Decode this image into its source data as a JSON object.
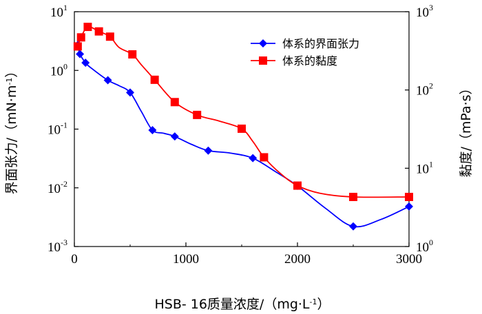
{
  "chart_data": {
    "type": "line",
    "x_axis": {
      "label_prefix": "HSB- 16质量浓度/（mg·L",
      "label_sup": "-1",
      "label_suffix": "）",
      "range": [
        0,
        3000
      ],
      "ticks": [
        "0",
        "1000",
        "2000",
        "3000"
      ],
      "tick_values": [
        0,
        1000,
        2000,
        3000
      ]
    },
    "y_left": {
      "label_prefix": "界面张力/（mN·m",
      "label_sup": "-1",
      "label_suffix": "）",
      "scale": "log",
      "range": [
        0.001,
        10
      ],
      "ticks": [
        {
          "value": 10,
          "base": "10",
          "exp": "1"
        },
        {
          "value": 1,
          "base": "10",
          "exp": "0"
        },
        {
          "value": 0.1,
          "base": "10",
          "exp": "-1"
        },
        {
          "value": 0.01,
          "base": "10",
          "exp": "-2"
        },
        {
          "value": 0.001,
          "base": "10",
          "exp": "-3"
        }
      ]
    },
    "y_right": {
      "label": "黏度/（mPa·s）",
      "scale": "log",
      "range": [
        1,
        1000
      ],
      "ticks": [
        {
          "value": 1000,
          "base": "10",
          "exp": "3"
        },
        {
          "value": 100,
          "base": "10",
          "exp": "2"
        },
        {
          "value": 10,
          "base": "10",
          "exp": "1"
        },
        {
          "value": 1,
          "base": "10",
          "exp": "0"
        }
      ]
    },
    "series": [
      {
        "name": "体系的界面张力",
        "axis": "left",
        "color": "#0000ff",
        "marker": "diamond",
        "points": [
          {
            "x": 30,
            "y": 2.7
          },
          {
            "x": 50,
            "y": 1.9
          },
          {
            "x": 100,
            "y": 1.35
          },
          {
            "x": 150,
            "y": 1.1,
            "hidden": true
          },
          {
            "x": 300,
            "y": 0.68
          },
          {
            "x": 400,
            "y": 0.55,
            "hidden": true
          },
          {
            "x": 500,
            "y": 0.42
          },
          {
            "x": 600,
            "y": 0.2,
            "hidden": true
          },
          {
            "x": 700,
            "y": 0.096
          },
          {
            "x": 800,
            "y": 0.085,
            "hidden": true
          },
          {
            "x": 900,
            "y": 0.075
          },
          {
            "x": 1050,
            "y": 0.055,
            "hidden": true
          },
          {
            "x": 1200,
            "y": 0.043
          },
          {
            "x": 1400,
            "y": 0.039,
            "hidden": true
          },
          {
            "x": 1600,
            "y": 0.032
          },
          {
            "x": 1800,
            "y": 0.019,
            "hidden": true
          },
          {
            "x": 2000,
            "y": 0.0108
          },
          {
            "x": 2250,
            "y": 0.0045,
            "hidden": true
          },
          {
            "x": 2500,
            "y": 0.0022
          },
          {
            "x": 2750,
            "y": 0.0029,
            "hidden": true
          },
          {
            "x": 3000,
            "y": 0.0048
          }
        ]
      },
      {
        "name": "体系的黏度",
        "axis": "right",
        "color": "#ff0000",
        "marker": "square",
        "points": [
          {
            "x": 30,
            "y": 360
          },
          {
            "x": 60,
            "y": 470
          },
          {
            "x": 120,
            "y": 640
          },
          {
            "x": 220,
            "y": 560
          },
          {
            "x": 320,
            "y": 480
          },
          {
            "x": 400,
            "y": 350,
            "hidden": true
          },
          {
            "x": 520,
            "y": 285
          },
          {
            "x": 600,
            "y": 210,
            "hidden": true
          },
          {
            "x": 720,
            "y": 135
          },
          {
            "x": 900,
            "y": 70
          },
          {
            "x": 1100,
            "y": 48
          },
          {
            "x": 1300,
            "y": 40,
            "hidden": true
          },
          {
            "x": 1500,
            "y": 32
          },
          {
            "x": 1600,
            "y": 22,
            "hidden": true
          },
          {
            "x": 1700,
            "y": 13.8
          },
          {
            "x": 1850,
            "y": 8.5,
            "hidden": true
          },
          {
            "x": 2000,
            "y": 6
          },
          {
            "x": 2200,
            "y": 4.8,
            "hidden": true
          },
          {
            "x": 2500,
            "y": 4.3
          },
          {
            "x": 3000,
            "y": 4.3
          }
        ]
      }
    ],
    "legend": {
      "position": "top-right",
      "entries": [
        "体系的界面张力",
        "体系的黏度"
      ]
    }
  }
}
